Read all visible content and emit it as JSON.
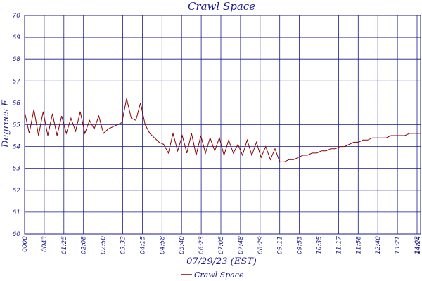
{
  "chart_data": {
    "type": "line",
    "title": "Crawl Space",
    "xlabel": "07/29/23 (EST)",
    "ylabel": "Degrees F",
    "ylim": [
      60,
      70
    ],
    "yticks": [
      60,
      61,
      62,
      63,
      64,
      65,
      66,
      67,
      68,
      69,
      70
    ],
    "xticks": [
      "0000",
      "0043",
      "01:25",
      "02:08",
      "02:50",
      "03:33",
      "04:15",
      "04:58",
      "05:40",
      "06:23",
      "07:05",
      "07:48",
      "08:29",
      "09:11",
      "09:53",
      "10:35",
      "11:17",
      "11:58",
      "12:40",
      "13:21",
      "14:03",
      "14:14"
    ],
    "grid": true,
    "legend_position": "bottom",
    "series": [
      {
        "name": "Crawl Space",
        "color": "#8b0000",
        "x_minutes": [
          0,
          10,
          20,
          30,
          40,
          50,
          60,
          70,
          80,
          90,
          100,
          110,
          120,
          130,
          140,
          150,
          160,
          170,
          180,
          190,
          200,
          210,
          220,
          230,
          240,
          250,
          260,
          270,
          280,
          290,
          300,
          310,
          320,
          330,
          340,
          350,
          360,
          370,
          380,
          390,
          400,
          410,
          420,
          430,
          440,
          450,
          460,
          470,
          480,
          490,
          500,
          510,
          520,
          530,
          540,
          550,
          560,
          570,
          580,
          590,
          600,
          610,
          620,
          630,
          640,
          650,
          660,
          670,
          680,
          690,
          700,
          710,
          720,
          730,
          740,
          750,
          760,
          770,
          780,
          790,
          800,
          810,
          820,
          830,
          840,
          850,
          854
        ],
        "values": [
          65.6,
          64.6,
          65.7,
          64.5,
          65.6,
          64.5,
          65.5,
          64.5,
          65.4,
          64.6,
          65.3,
          64.7,
          65.6,
          64.6,
          65.2,
          64.8,
          65.4,
          64.6,
          64.8,
          64.9,
          65.0,
          65.1,
          66.2,
          65.3,
          65.2,
          66.0,
          65.0,
          64.6,
          64.4,
          64.2,
          64.1,
          63.7,
          64.6,
          63.8,
          64.5,
          63.7,
          64.6,
          63.6,
          64.5,
          63.7,
          64.4,
          63.8,
          64.4,
          63.6,
          64.3,
          63.7,
          64.1,
          63.6,
          64.3,
          63.6,
          64.2,
          63.5,
          64.0,
          63.4,
          63.9,
          63.3,
          63.3,
          63.4,
          63.4,
          63.5,
          63.6,
          63.6,
          63.7,
          63.7,
          63.8,
          63.8,
          63.9,
          63.9,
          64.0,
          64.0,
          64.1,
          64.2,
          64.2,
          64.3,
          64.3,
          64.4,
          64.4,
          64.4,
          64.4,
          64.5,
          64.5,
          64.5,
          64.5,
          64.6,
          64.6,
          64.6,
          64.6
        ]
      }
    ]
  }
}
